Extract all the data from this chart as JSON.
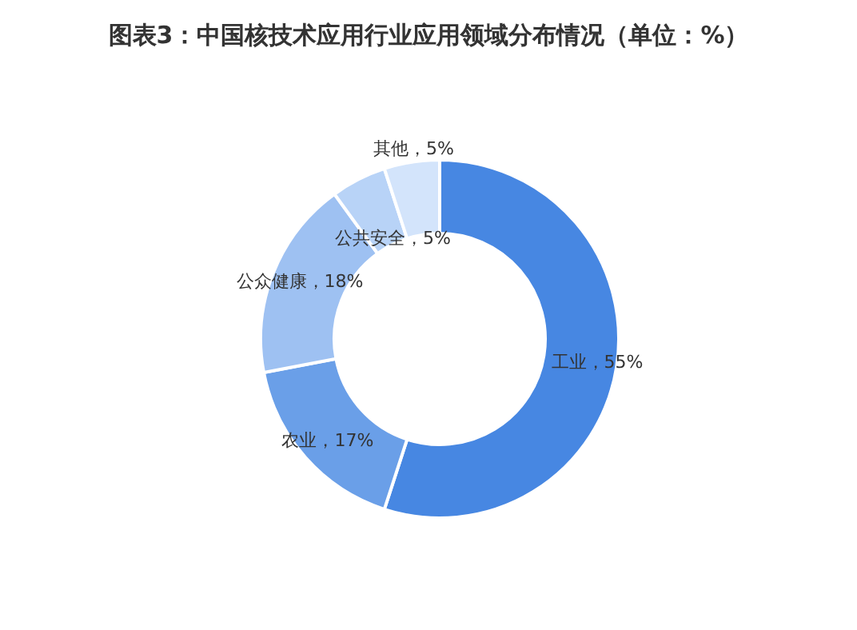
{
  "chart_data": {
    "type": "donut",
    "title": "图表3：中国核技术应用行业应用领域分布情况（单位：%）",
    "categories": [
      "工业",
      "农业",
      "公众健康",
      "公共安全",
      "其他"
    ],
    "values": [
      55,
      17,
      18,
      5,
      5
    ],
    "colors": [
      "#4787e2",
      "#6a9fe8",
      "#9ec1f2",
      "#b8d3f7",
      "#d3e4fb"
    ],
    "value_labels": [
      "，55%",
      "，17%",
      "，18%",
      "，5%",
      "，5%"
    ],
    "legend": false
  }
}
